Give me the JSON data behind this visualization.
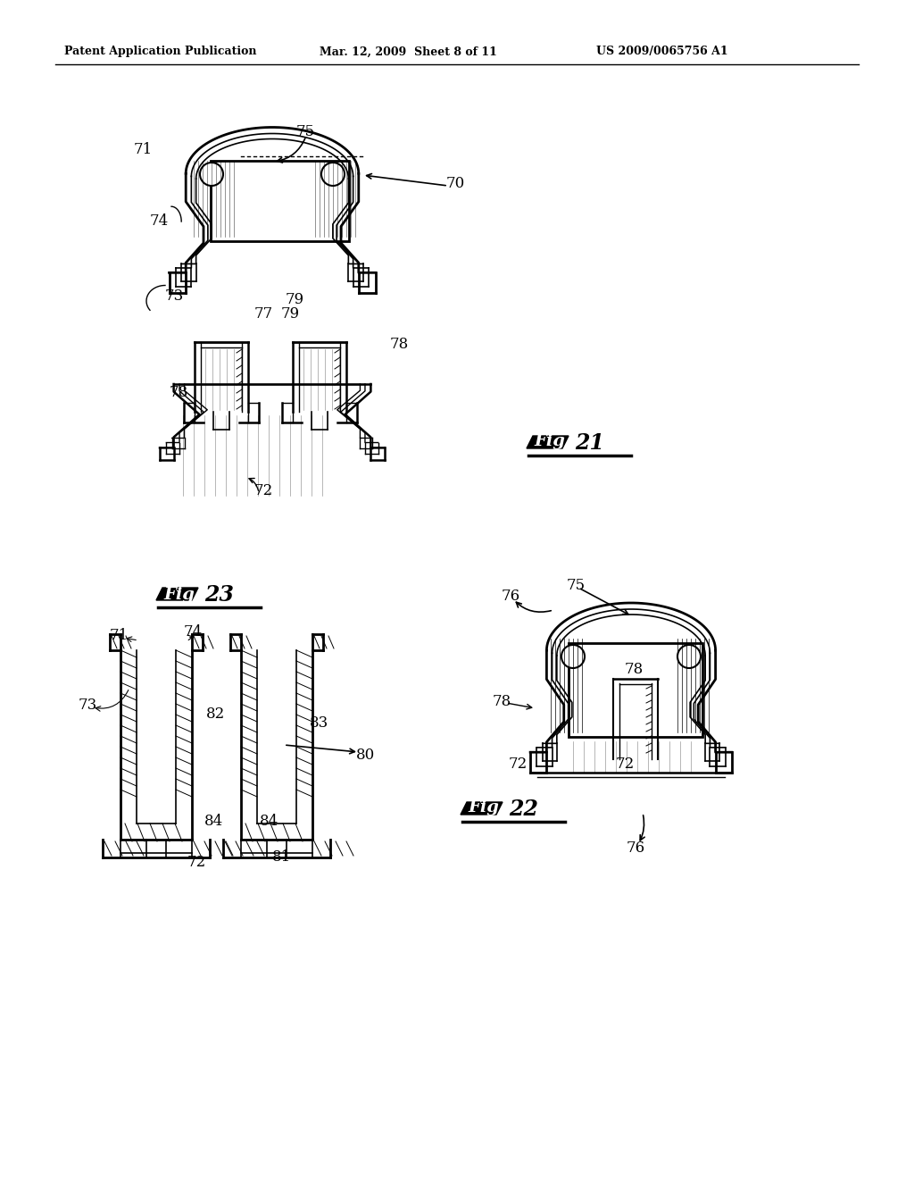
{
  "bg_color": "#ffffff",
  "header_left": "Patent Application Publication",
  "header_center": "Mar. 12, 2009  Sheet 8 of 11",
  "header_right": "US 2009/0065756 A1"
}
